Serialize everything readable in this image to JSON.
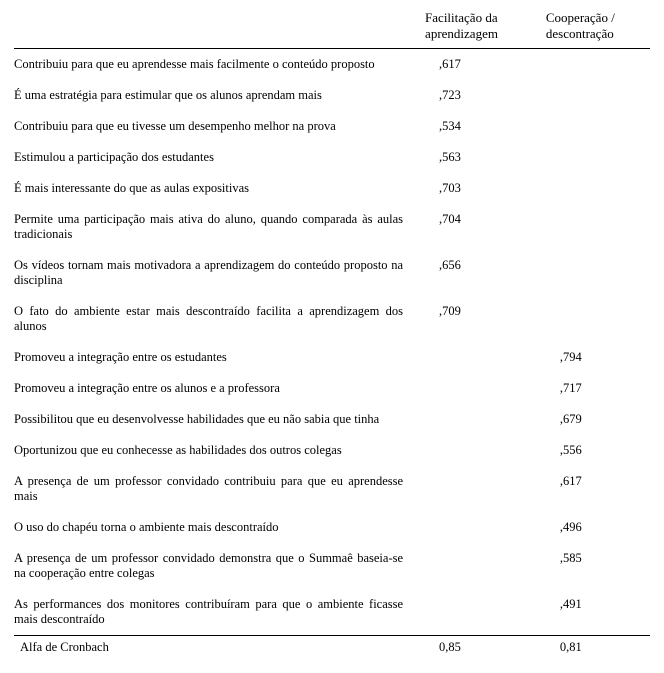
{
  "headers": {
    "item": "",
    "factor1": "Facilitação da aprendizagem",
    "factor2": "Cooperação / descontração"
  },
  "rows": [
    {
      "item": "Contribuiu para que eu aprendesse mais facilmente o conteúdo proposto",
      "f1": ",617",
      "f2": ""
    },
    {
      "item": "É uma estratégia para estimular que os alunos aprendam mais",
      "f1": ",723",
      "f2": ""
    },
    {
      "item": "Contribuiu para que eu tivesse um desempenho melhor na prova",
      "f1": ",534",
      "f2": ""
    },
    {
      "item": "Estimulou a participação dos estudantes",
      "f1": ",563",
      "f2": ""
    },
    {
      "item": "É mais interessante do que as aulas expositivas",
      "f1": ",703",
      "f2": ""
    },
    {
      "item": "Permite uma participação mais ativa do aluno, quando comparada às aulas tradicionais",
      "f1": ",704",
      "f2": ""
    },
    {
      "item": "Os vídeos tornam mais motivadora a aprendizagem do conteúdo proposto na disciplina",
      "f1": ",656",
      "f2": ""
    },
    {
      "item": "O fato do ambiente estar mais descontraído facilita a aprendizagem dos alunos",
      "f1": ",709",
      "f2": ""
    },
    {
      "item": "Promoveu a integração entre os estudantes",
      "f1": "",
      "f2": ",794"
    },
    {
      "item": "Promoveu a integração entre os alunos e a professora",
      "f1": "",
      "f2": ",717"
    },
    {
      "item": "Possibilitou que eu desenvolvesse habilidades que eu não sabia que tinha",
      "f1": "",
      "f2": ",679"
    },
    {
      "item": "Oportunizou que eu  conhecesse as habilidades dos outros colegas",
      "f1": "",
      "f2": ",556"
    },
    {
      "item": "A presença de um professor convidado contribuiu para que eu aprendesse mais",
      "f1": "",
      "f2": ",617"
    },
    {
      "item": "O uso do chapéu torna o ambiente mais descontraído",
      "f1": "",
      "f2": ",496"
    },
    {
      "item": "A presença de um professor convidado demonstra que o Summaê baseia-se na cooperação entre colegas",
      "f1": "",
      "f2": ",585"
    },
    {
      "item": "As performances dos monitores contribuíram para que o ambiente ficasse mais descontraído",
      "f1": "",
      "f2": ",491"
    }
  ],
  "alpha": {
    "label": "Alfa de Cronbach",
    "f1": "0,85",
    "f2": "0,81"
  }
}
